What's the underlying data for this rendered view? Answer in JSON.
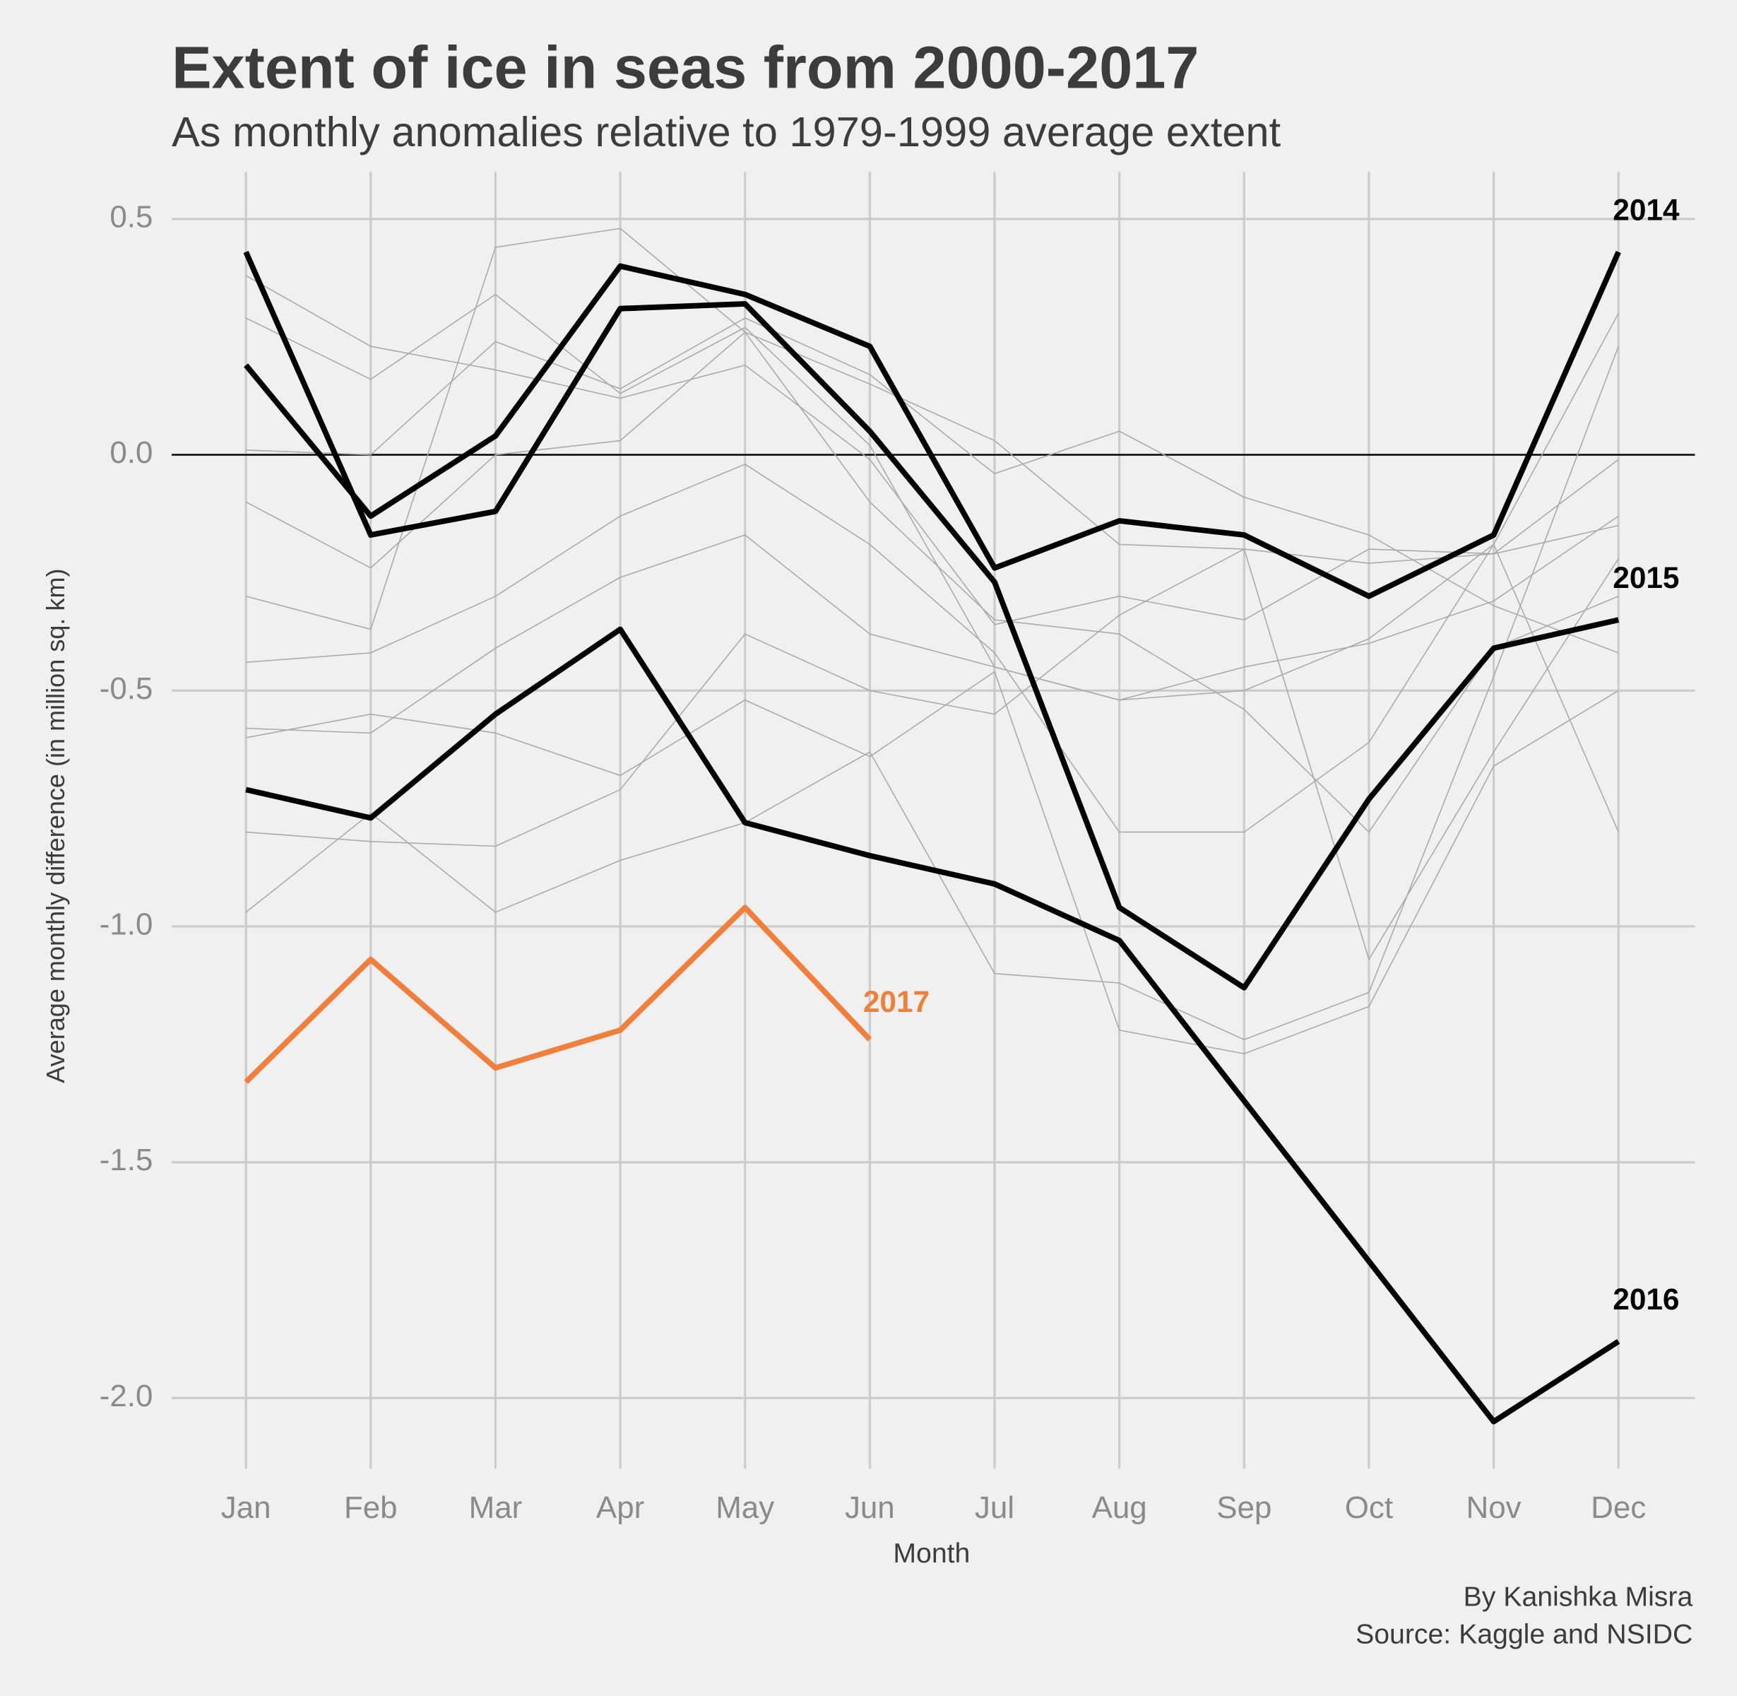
{
  "chart_data": {
    "type": "line",
    "title": "Extent of ice in seas from 2000-2017",
    "subtitle": "As monthly anomalies relative to 1979-1999 average extent",
    "x_label": "Month",
    "y_label": "Average monthly difference (in million sq. km)",
    "caption": [
      "By Kanishka Misra",
      "Source: Kaggle and NSIDC"
    ],
    "categories": [
      "Jan",
      "Feb",
      "Mar",
      "Apr",
      "May",
      "Jun",
      "Jul",
      "Aug",
      "Sep",
      "Oct",
      "Nov",
      "Dec"
    ],
    "ylim": [
      -2.15,
      0.6
    ],
    "yticks": [
      0.5,
      {
        "value": 0,
        "label": "0.0"
      },
      -0.5,
      {
        "value": -1,
        "label": "-1.0"
      },
      -1.5,
      {
        "value": -2,
        "label": "-2.0"
      }
    ],
    "grid": true,
    "zero_line": true,
    "background_color": "#a9a9a9",
    "background_series": [
      [
        0.29,
        0.16,
        0.34,
        0.13,
        0.27,
        0.02,
        -0.45,
        -0.52,
        -0.5,
        -0.39,
        -0.19,
        0.3
      ],
      [
        0.01,
        0.0,
        0.24,
        0.14,
        0.29,
        0.17,
        -0.04,
        0.05,
        -0.09,
        -0.17,
        -0.32,
        -0.42
      ],
      [
        -0.1,
        -0.24,
        0.0,
        0.03,
        0.26,
        0.15,
        0.03,
        -0.19,
        -0.2,
        -0.23,
        -0.21,
        -0.01
      ],
      [
        -0.3,
        -0.37,
        0.44,
        0.48,
        0.26,
        -0.1,
        -0.35,
        -0.38,
        -0.54,
        -0.8,
        -0.41,
        -0.3
      ],
      [
        -0.44,
        -0.42,
        -0.3,
        -0.13,
        -0.02,
        -0.19,
        -0.42,
        -0.8,
        -0.8,
        -0.61,
        -0.19,
        -0.8
      ],
      [
        -0.58,
        -0.59,
        -0.41,
        -0.26,
        -0.17,
        -0.38,
        -0.45,
        -0.52,
        -0.45,
        -0.4,
        -0.31,
        -0.13
      ],
      [
        -0.8,
        -0.82,
        -0.83,
        -0.71,
        -0.38,
        -0.5,
        -0.55,
        -0.34,
        -0.2,
        -1.07,
        -0.63,
        -0.22
      ],
      [
        -0.97,
        -0.76,
        -0.97,
        -0.86,
        -0.78,
        -0.63,
        -1.1,
        -1.12,
        -1.24,
        -1.14,
        -0.47,
        0.23
      ],
      [
        -0.6,
        -0.55,
        -0.59,
        -0.68,
        -0.52,
        -0.64,
        -0.46,
        -1.22,
        -1.27,
        -1.17,
        -0.66,
        -0.5
      ],
      [
        0.38,
        0.23,
        0.18,
        0.12,
        0.19,
        -0.01,
        -0.36,
        -0.3,
        -0.35,
        -0.2,
        -0.21,
        -0.15
      ]
    ],
    "series": [
      {
        "name": "2014",
        "color": "#000000",
        "values": [
          0.19,
          -0.13,
          0.04,
          0.4,
          0.34,
          0.23,
          -0.24,
          -0.14,
          -0.17,
          -0.3,
          -0.17,
          0.43
        ]
      },
      {
        "name": "2015",
        "color": "#000000",
        "values": [
          0.43,
          -0.17,
          -0.12,
          0.31,
          0.32,
          0.05,
          -0.27,
          -0.96,
          -1.13,
          -0.73,
          -0.41,
          -0.35
        ]
      },
      {
        "name": "2016",
        "color": "#000000",
        "values": [
          -0.71,
          -0.77,
          -0.55,
          -0.37,
          -0.78,
          -0.85,
          -0.91,
          -1.03,
          -1.37,
          -1.71,
          -2.05,
          -1.88
        ]
      },
      {
        "name": "2017",
        "color": "#f07f3c",
        "values": [
          -1.33,
          -1.07,
          -1.3,
          -1.22,
          -0.96,
          -1.24,
          null,
          null,
          null,
          null,
          null,
          null
        ]
      }
    ]
  }
}
